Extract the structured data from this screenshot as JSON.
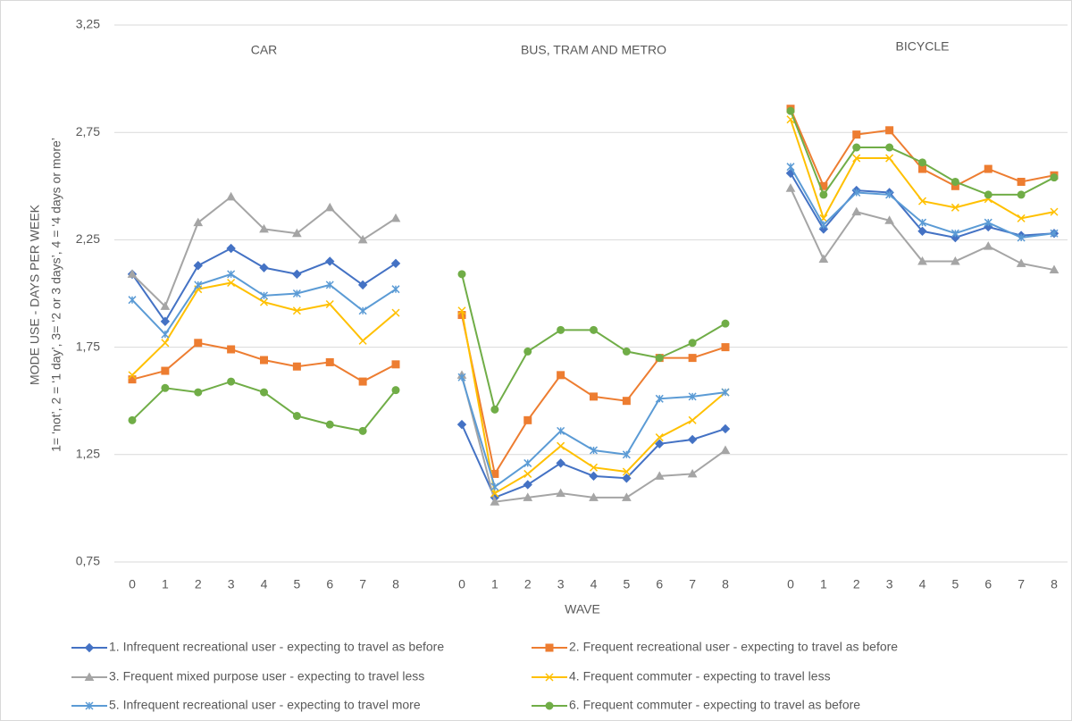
{
  "chart_data": {
    "type": "line",
    "ylabel": [
      "MODE USE - DAYS PER WEEK",
      "1= ‘not’, 2 = ‘1 day’, 3= ‘2 or 3 days’, 4 = ‘4 days or more’"
    ],
    "xlabel": "WAVE",
    "ylim": [
      0.75,
      3.25
    ],
    "yticks": [
      {
        "value": 0.75,
        "label": "0,75"
      },
      {
        "value": 1.25,
        "label": "1,25"
      },
      {
        "value": 1.75,
        "label": "1,75"
      },
      {
        "value": 2.25,
        "label": "2,25"
      },
      {
        "value": 2.75,
        "label": "2,75"
      },
      {
        "value": 3.25,
        "label": "3,25"
      }
    ],
    "grid": true,
    "series": [
      {
        "name": "1. Infrequent recreational user - expecting to travel as before",
        "color": "#4472c4",
        "marker": "diamond"
      },
      {
        "name": "2. Frequent recreational user - expecting to travel as before",
        "color": "#ed7d31",
        "marker": "square"
      },
      {
        "name": "3. Frequent mixed purpose user - expecting to travel less",
        "color": "#a5a5a5",
        "marker": "triangle"
      },
      {
        "name": "4. Frequent commuter - expecting to travel less",
        "color": "#ffc000",
        "marker": "x"
      },
      {
        "name": "5. Infrequent recreational user - expecting to travel more",
        "color": "#5b9bd5",
        "marker": "star"
      },
      {
        "name": "6. Frequent commuter - expecting to travel as before",
        "color": "#70ad47",
        "marker": "circle"
      }
    ],
    "panels": [
      {
        "title": "CAR",
        "categories": [
          "0",
          "1",
          "2",
          "3",
          "4",
          "5",
          "6",
          "7",
          "8"
        ],
        "series": [
          {
            "values": [
              2.09,
              1.87,
              2.13,
              2.21,
              2.12,
              2.09,
              2.15,
              2.04,
              2.14
            ]
          },
          {
            "values": [
              1.6,
              1.64,
              1.77,
              1.74,
              1.69,
              1.66,
              1.68,
              1.59,
              1.67
            ]
          },
          {
            "values": [
              2.09,
              1.94,
              2.33,
              2.45,
              2.3,
              2.28,
              2.4,
              2.25,
              2.35
            ]
          },
          {
            "values": [
              1.62,
              1.77,
              2.02,
              2.05,
              1.96,
              1.92,
              1.95,
              1.78,
              1.91
            ]
          },
          {
            "values": [
              1.97,
              1.81,
              2.04,
              2.09,
              1.99,
              2.0,
              2.04,
              1.92,
              2.02
            ]
          },
          {
            "values": [
              1.41,
              1.56,
              1.54,
              1.59,
              1.54,
              1.43,
              1.39,
              1.36,
              1.55
            ]
          }
        ]
      },
      {
        "title": "BUS, TRAM AND METRO",
        "categories": [
          "0",
          "1",
          "2",
          "3",
          "4",
          "5",
          "6",
          "7",
          "8"
        ],
        "series": [
          {
            "values": [
              1.39,
              1.05,
              1.11,
              1.21,
              1.15,
              1.14,
              1.3,
              1.32,
              1.37
            ]
          },
          {
            "values": [
              1.9,
              1.16,
              1.41,
              1.62,
              1.52,
              1.5,
              1.7,
              1.7,
              1.75
            ]
          },
          {
            "values": [
              1.62,
              1.03,
              1.05,
              1.07,
              1.05,
              1.05,
              1.15,
              1.16,
              1.27
            ]
          },
          {
            "values": [
              1.92,
              1.07,
              1.16,
              1.29,
              1.19,
              1.17,
              1.33,
              1.41,
              1.54
            ]
          },
          {
            "values": [
              1.61,
              1.1,
              1.21,
              1.36,
              1.27,
              1.25,
              1.51,
              1.52,
              1.54
            ]
          },
          {
            "values": [
              2.09,
              1.46,
              1.73,
              1.83,
              1.83,
              1.73,
              1.7,
              1.77,
              1.86
            ]
          }
        ]
      },
      {
        "title": "BICYCLE",
        "categories": [
          "0",
          "1",
          "2",
          "3",
          "4",
          "5",
          "6",
          "7",
          "8"
        ],
        "series": [
          {
            "values": [
              2.56,
              2.3,
              2.48,
              2.47,
              2.29,
              2.26,
              2.31,
              2.27,
              2.28
            ]
          },
          {
            "values": [
              2.86,
              2.5,
              2.74,
              2.76,
              2.58,
              2.5,
              2.58,
              2.52,
              2.55
            ]
          },
          {
            "values": [
              2.49,
              2.16,
              2.38,
              2.34,
              2.15,
              2.15,
              2.22,
              2.14,
              2.11
            ]
          },
          {
            "values": [
              2.81,
              2.35,
              2.63,
              2.63,
              2.43,
              2.4,
              2.44,
              2.35,
              2.38
            ]
          },
          {
            "values": [
              2.59,
              2.32,
              2.47,
              2.46,
              2.33,
              2.28,
              2.33,
              2.26,
              2.28
            ]
          },
          {
            "values": [
              2.85,
              2.46,
              2.68,
              2.68,
              2.61,
              2.52,
              2.46,
              2.46,
              2.54
            ]
          }
        ]
      }
    ]
  }
}
